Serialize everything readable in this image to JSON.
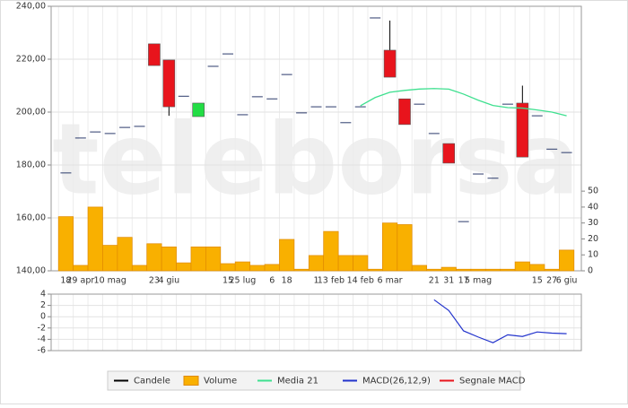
{
  "chart_data": [
    {
      "type": "candlestick",
      "watermark": "teleborsa",
      "categories": [
        "18",
        "29 apr",
        null,
        "10 mag",
        null,
        null,
        "23",
        "4 giu",
        null,
        null,
        null,
        "15",
        "25 lug",
        null,
        "6",
        "18",
        null,
        "1",
        "13 feb",
        null,
        "14 feb",
        null,
        "6 mar",
        null,
        null,
        "21",
        "31",
        "17",
        "5 mag",
        null,
        null,
        null,
        "15",
        "27",
        "6 giu"
      ],
      "series": [
        {
          "name": "Candele",
          "color": "#000000",
          "up_color": "#22dd44",
          "down_color": "#e8141c",
          "open": [
            177,
            190.2,
            192.5,
            191.9,
            194.2,
            194.6,
            225.8,
            219.7,
            206,
            198.3,
            217.3,
            222,
            199,
            205.8,
            205,
            214.2,
            199.7,
            202,
            202,
            196,
            202,
            235.6,
            223.4,
            205,
            203,
            191.9,
            188.1,
            158.6,
            176.6,
            175,
            203,
            203.4,
            198.6,
            186,
            184.7
          ],
          "high": [
            177,
            190.2,
            192.5,
            191.9,
            194.2,
            194.6,
            225.8,
            219.7,
            206,
            203.4,
            217.3,
            222,
            199,
            205.8,
            205,
            214.2,
            199.7,
            202,
            202,
            196,
            202,
            235.6,
            234.6,
            205,
            203,
            191.9,
            188.1,
            158.6,
            176.6,
            175,
            203,
            210,
            198.6,
            186,
            184.7
          ],
          "low": [
            177,
            190.2,
            192.5,
            191.9,
            194.2,
            194.6,
            217.6,
            198.6,
            206,
            198.3,
            217.3,
            222,
            199,
            205.8,
            205,
            214.2,
            199.7,
            202,
            202,
            196,
            202,
            235.6,
            213.2,
            195.3,
            203,
            191.9,
            180.7,
            158.6,
            176.6,
            175,
            203,
            183,
            198.6,
            186,
            184.7
          ],
          "close": [
            177,
            190.2,
            192.5,
            191.9,
            194.2,
            194.6,
            217.6,
            202,
            206,
            203.4,
            217.3,
            222,
            199,
            205.8,
            205,
            214.2,
            199.7,
            202,
            202,
            196,
            202,
            235.6,
            213.2,
            195.3,
            203,
            191.9,
            180.7,
            158.6,
            176.6,
            175,
            203,
            183,
            198.6,
            186,
            184.7
          ]
        },
        {
          "name": "Volume",
          "type": "bar",
          "axis": "y2",
          "color": "#f9b000",
          "values": [
            34,
            3.4,
            40,
            16,
            21,
            3.4,
            17,
            15,
            5,
            15,
            15,
            4.5,
            5.6,
            3.4,
            4,
            19.7,
            1,
            9.6,
            24.7,
            9.6,
            9.6,
            1,
            30,
            29,
            3.4,
            1,
            2.2,
            1,
            1,
            1,
            1,
            5.6,
            4,
            1,
            13
          ]
        },
        {
          "name": "Media 21",
          "type": "line",
          "color": "#3ee08f",
          "values": [
            null,
            null,
            null,
            null,
            null,
            null,
            null,
            null,
            null,
            null,
            null,
            null,
            null,
            null,
            null,
            null,
            null,
            null,
            null,
            null,
            202.4,
            205.5,
            207.5,
            208.2,
            208.7,
            208.9,
            208.7,
            206.8,
            204.5,
            202.5,
            201.7,
            201.5,
            200.8,
            200,
            198.6
          ]
        }
      ],
      "ylim": [
        140,
        240
      ],
      "yticks": [
        {
          "value": 140,
          "label": "140,00"
        },
        {
          "value": 160,
          "label": "160,00"
        },
        {
          "value": 180,
          "label": "180,00"
        },
        {
          "value": 200,
          "label": "200,00"
        },
        {
          "value": 220,
          "label": "220,00"
        },
        {
          "value": 240,
          "label": "240,00"
        }
      ],
      "y2lim": [
        0,
        166
      ],
      "y2ticks": [
        0,
        10,
        20,
        30,
        40,
        50
      ],
      "grid": true
    },
    {
      "type": "line",
      "series": [
        {
          "name": "MACD(26,12,9)",
          "color": "#2233cc",
          "values": [
            null,
            null,
            null,
            null,
            null,
            null,
            null,
            null,
            null,
            null,
            null,
            null,
            null,
            null,
            null,
            null,
            null,
            null,
            null,
            null,
            null,
            null,
            null,
            null,
            null,
            3,
            1.1,
            -2.5,
            -3.6,
            -4.6,
            -3.2,
            -3.5,
            -2.7,
            -2.9,
            -3
          ]
        },
        {
          "name": "Segnale MACD",
          "color": "#e8141c",
          "values": [
            null,
            null,
            null,
            null,
            null,
            null,
            null,
            null,
            null,
            null,
            null,
            null,
            null,
            null,
            null,
            null,
            null,
            null,
            null,
            null,
            null,
            null,
            null,
            null,
            null,
            null,
            null,
            null,
            null,
            null,
            null,
            null,
            null,
            null,
            null
          ]
        }
      ],
      "ylim": [
        -6,
        4
      ],
      "yticks": [
        -6,
        -4,
        -2,
        0,
        2,
        4
      ],
      "grid": true
    }
  ]
}
